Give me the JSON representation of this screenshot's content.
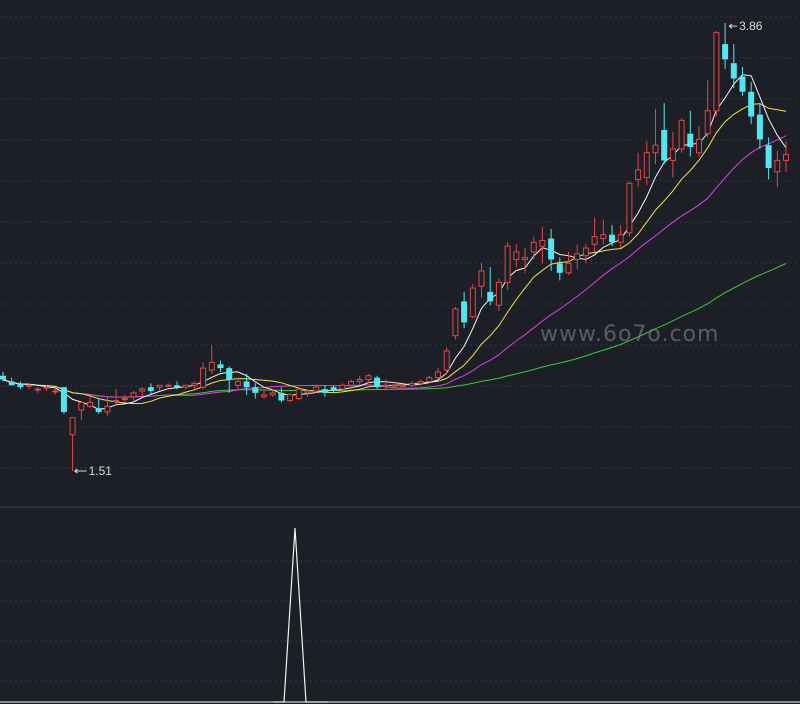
{
  "chart_data": [
    {
      "type": "candlestick",
      "title": "",
      "xlabel": "",
      "ylabel": "",
      "ylim": [
        1.4,
        3.95
      ],
      "grid": true,
      "annotations": {
        "high_label": "3.86",
        "low_label": "1.51"
      },
      "watermark": "www.6o7o.com",
      "colors": {
        "up": "#e04848",
        "down": "#54e6ee",
        "ma5": "#f2f2f2",
        "ma10": "#f2e24a",
        "ma20": "#e040e0",
        "ma60": "#3cc83c"
      },
      "candles": [
        [
          2.01,
          2.03,
          1.99,
          1.98
        ],
        [
          1.98,
          2.0,
          1.96,
          1.96
        ],
        [
          1.97,
          1.98,
          1.95,
          1.94
        ],
        [
          1.96,
          1.97,
          1.96,
          1.94
        ],
        [
          1.94,
          1.95,
          1.94,
          1.92
        ],
        [
          1.95,
          1.96,
          1.95,
          1.93
        ],
        [
          1.93,
          1.94,
          1.93,
          1.91
        ],
        [
          1.95,
          1.95,
          1.82,
          1.81
        ],
        [
          1.7,
          1.79,
          1.79,
          1.51
        ],
        [
          1.83,
          1.85,
          1.87,
          1.78
        ],
        [
          1.85,
          1.9,
          1.87,
          1.84
        ],
        [
          1.84,
          1.89,
          1.82,
          1.81
        ],
        [
          1.82,
          1.9,
          1.85,
          1.8
        ],
        [
          1.88,
          1.94,
          1.88,
          1.86
        ],
        [
          1.89,
          1.91,
          1.89,
          1.87
        ],
        [
          1.9,
          1.93,
          1.92,
          1.88
        ],
        [
          1.93,
          1.95,
          1.94,
          1.9
        ],
        [
          1.95,
          1.97,
          1.93,
          1.91
        ],
        [
          1.95,
          1.96,
          1.96,
          1.93
        ],
        [
          1.96,
          1.97,
          1.96,
          1.95
        ],
        [
          1.96,
          1.98,
          1.95,
          1.94
        ],
        [
          1.95,
          1.96,
          1.96,
          1.94
        ],
        [
          1.96,
          1.98,
          1.97,
          1.94
        ],
        [
          1.95,
          2.08,
          2.05,
          1.94
        ],
        [
          2.04,
          2.17,
          2.08,
          2.02
        ],
        [
          2.07,
          2.09,
          2.05,
          2.03
        ],
        [
          2.05,
          2.06,
          1.99,
          1.92
        ],
        [
          1.96,
          2.0,
          1.98,
          1.94
        ],
        [
          1.98,
          2.02,
          1.95,
          1.91
        ],
        [
          1.95,
          1.97,
          1.92,
          1.89
        ],
        [
          1.9,
          1.94,
          1.91,
          1.89
        ],
        [
          1.91,
          1.94,
          1.92,
          1.9
        ],
        [
          1.92,
          1.95,
          1.88,
          1.87
        ],
        [
          1.88,
          1.92,
          1.91,
          1.87
        ],
        [
          1.89,
          1.93,
          1.94,
          1.88
        ],
        [
          1.92,
          1.94,
          1.93,
          1.9
        ],
        [
          1.93,
          1.96,
          1.95,
          1.92
        ],
        [
          1.94,
          1.96,
          1.92,
          1.9
        ],
        [
          1.95,
          1.96,
          1.93,
          1.92
        ],
        [
          1.94,
          1.97,
          1.96,
          1.93
        ],
        [
          1.96,
          1.99,
          1.98,
          1.94
        ],
        [
          1.98,
          2.01,
          1.99,
          1.96
        ],
        [
          1.99,
          2.02,
          2.01,
          1.97
        ],
        [
          2.0,
          2.01,
          1.95,
          1.94
        ],
        [
          1.96,
          1.99,
          1.96,
          1.94
        ],
        [
          1.96,
          1.98,
          1.96,
          1.95
        ],
        [
          1.96,
          1.97,
          1.96,
          1.95
        ],
        [
          1.96,
          1.98,
          1.97,
          1.95
        ],
        [
          1.97,
          1.99,
          1.98,
          1.96
        ],
        [
          1.98,
          2.01,
          2.0,
          1.97
        ],
        [
          2.0,
          2.05,
          2.03,
          1.99
        ],
        [
          2.04,
          2.16,
          2.14,
          2.02
        ],
        [
          2.22,
          2.37,
          2.36,
          2.2
        ],
        [
          2.4,
          2.45,
          2.29,
          2.26
        ],
        [
          2.32,
          2.49,
          2.47,
          2.31
        ],
        [
          2.48,
          2.6,
          2.56,
          2.42
        ],
        [
          2.45,
          2.58,
          2.4,
          2.38
        ],
        [
          2.38,
          2.52,
          2.5,
          2.35
        ],
        [
          2.5,
          2.71,
          2.69,
          2.46
        ],
        [
          2.62,
          2.7,
          2.66,
          2.58
        ],
        [
          2.62,
          2.68,
          2.63,
          2.55
        ],
        [
          2.66,
          2.74,
          2.71,
          2.62
        ],
        [
          2.69,
          2.79,
          2.72,
          2.6
        ],
        [
          2.73,
          2.78,
          2.62,
          2.56
        ],
        [
          2.6,
          2.63,
          2.55,
          2.51
        ],
        [
          2.55,
          2.66,
          2.6,
          2.54
        ],
        [
          2.62,
          2.7,
          2.65,
          2.57
        ],
        [
          2.64,
          2.7,
          2.68,
          2.6
        ],
        [
          2.7,
          2.84,
          2.74,
          2.66
        ],
        [
          2.73,
          2.83,
          2.75,
          2.7
        ],
        [
          2.75,
          2.8,
          2.71,
          2.69
        ],
        [
          2.71,
          2.8,
          2.75,
          2.68
        ],
        [
          2.76,
          3.03,
          3.02,
          2.74
        ],
        [
          3.04,
          3.18,
          3.09,
          3.0
        ],
        [
          3.05,
          3.24,
          3.18,
          3.01
        ],
        [
          3.18,
          3.41,
          3.22,
          3.12
        ],
        [
          3.3,
          3.44,
          3.14,
          3.12
        ],
        [
          3.14,
          3.29,
          3.2,
          3.05
        ],
        [
          3.2,
          3.36,
          3.35,
          3.18
        ],
        [
          3.28,
          3.4,
          3.21,
          3.16
        ],
        [
          3.18,
          3.32,
          3.25,
          3.16
        ],
        [
          3.28,
          3.56,
          3.4,
          3.26
        ],
        [
          3.4,
          3.82,
          3.81,
          3.37
        ],
        [
          3.75,
          3.86,
          3.67,
          3.62
        ],
        [
          3.65,
          3.75,
          3.57,
          3.52
        ],
        [
          3.58,
          3.63,
          3.5,
          3.48
        ],
        [
          3.5,
          3.55,
          3.37,
          3.33
        ],
        [
          3.38,
          3.44,
          3.25,
          3.2
        ],
        [
          3.22,
          3.26,
          3.1,
          3.04
        ],
        [
          3.08,
          3.19,
          3.14,
          3.0
        ],
        [
          3.14,
          3.24,
          3.17,
          3.08
        ]
      ]
    },
    {
      "type": "line",
      "title": "",
      "series": [
        {
          "x": [
            0,
            1,
            2,
            3,
            4,
            5
          ],
          "y": [
            0,
            0,
            1,
            0,
            0,
            0
          ]
        }
      ]
    }
  ]
}
